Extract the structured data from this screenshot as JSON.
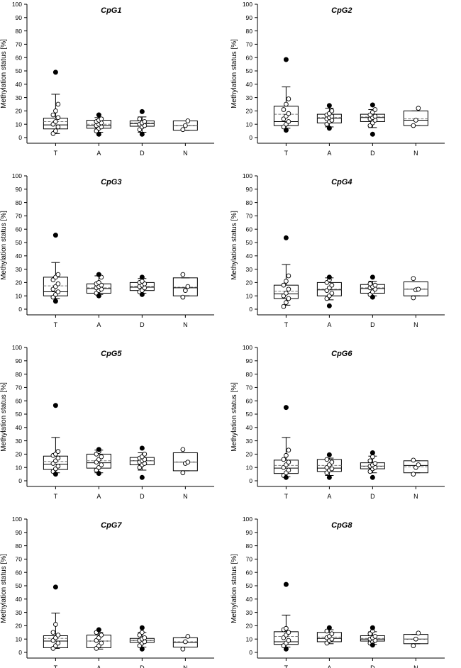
{
  "figure": {
    "ylabel": "Methylation status [%]",
    "categories": [
      "T",
      "A",
      "D",
      "N"
    ],
    "yticks": [
      0,
      10,
      20,
      30,
      40,
      50,
      60,
      70,
      80,
      90,
      100
    ],
    "ylim": [
      0,
      100
    ]
  },
  "chart_data": [
    {
      "type": "box",
      "title": "CpG1",
      "xlabel": "",
      "ylabel": "Methylation status [%]",
      "ylim": [
        0,
        100
      ],
      "categories": [
        "T",
        "A",
        "D",
        "N"
      ],
      "boxes": [
        {
          "category": "T",
          "q1": 6.5,
          "median": 9.5,
          "q3": 14.5,
          "mean": 12,
          "wlo": 3,
          "whi": 32.5,
          "outliers": [
            49
          ],
          "points": [
            3,
            5,
            8,
            10,
            12,
            15,
            17,
            20,
            25
          ]
        },
        {
          "category": "A",
          "q1": 7,
          "median": 9,
          "q3": 13,
          "mean": 10,
          "wlo": 4,
          "whi": 15,
          "outliers": [
            2.5,
            17
          ],
          "points": [
            5,
            7,
            8,
            9,
            10,
            11,
            12,
            13,
            14
          ]
        },
        {
          "category": "D",
          "q1": 8.5,
          "median": 10.5,
          "q3": 12.5,
          "mean": 11,
          "wlo": 4,
          "whi": 15.5,
          "outliers": [
            2.5,
            19.5
          ],
          "points": [
            6,
            8,
            9,
            10,
            11,
            12,
            14
          ]
        },
        {
          "category": "N",
          "q1": 5.5,
          "median": 9,
          "q3": 12.5,
          "mean": 9,
          "wlo": 5.5,
          "whi": 12.5,
          "outliers": [],
          "points": [
            6,
            9,
            12.5
          ]
        }
      ]
    },
    {
      "type": "box",
      "title": "CpG2",
      "xlabel": "",
      "ylabel": "Methylation status [%]",
      "ylim": [
        0,
        100
      ],
      "categories": [
        "T",
        "A",
        "D",
        "N"
      ],
      "boxes": [
        {
          "category": "T",
          "q1": 9,
          "median": 12,
          "q3": 23.5,
          "mean": 17.5,
          "wlo": 7,
          "whi": 38,
          "outliers": [
            58.5,
            5.5
          ],
          "points": [
            8,
            10,
            12,
            14,
            16,
            18,
            21,
            25,
            29
          ]
        },
        {
          "category": "A",
          "q1": 11,
          "median": 14.5,
          "q3": 17.5,
          "mean": 15,
          "wlo": 8,
          "whi": 22,
          "outliers": [
            7,
            24
          ],
          "points": [
            10,
            12,
            13,
            14,
            15,
            16,
            17,
            18,
            20
          ]
        },
        {
          "category": "D",
          "q1": 12,
          "median": 15,
          "q3": 17.5,
          "mean": 15.5,
          "wlo": 7.5,
          "whi": 21,
          "outliers": [
            2.5,
            24.5
          ],
          "points": [
            9,
            11,
            13,
            14,
            15,
            16,
            17,
            19,
            21
          ]
        },
        {
          "category": "N",
          "q1": 9,
          "median": 13,
          "q3": 20,
          "mean": 14,
          "wlo": 9,
          "whi": 20,
          "outliers": [],
          "points": [
            9,
            13,
            22
          ]
        }
      ]
    },
    {
      "type": "box",
      "title": "CpG3",
      "xlabel": "",
      "ylabel": "Methylation status [%]",
      "ylim": [
        0,
        100
      ],
      "categories": [
        "T",
        "A",
        "D",
        "N"
      ],
      "boxes": [
        {
          "category": "T",
          "q1": 10,
          "median": 13,
          "q3": 24,
          "mean": 17.5,
          "wlo": 8,
          "whi": 35,
          "outliers": [
            55.5,
            6
          ],
          "points": [
            9,
            11,
            13,
            15,
            17,
            19,
            22,
            24,
            26
          ]
        },
        {
          "category": "A",
          "q1": 12,
          "median": 15.5,
          "q3": 19,
          "mean": 16,
          "wlo": 11,
          "whi": 25,
          "outliers": [
            10,
            26
          ],
          "points": [
            12,
            14,
            15,
            16,
            17,
            18,
            19,
            20,
            24
          ]
        },
        {
          "category": "D",
          "q1": 14,
          "median": 16.5,
          "q3": 20,
          "mean": 17,
          "wlo": 12,
          "whi": 23,
          "outliers": [
            11,
            24
          ],
          "points": [
            13,
            14,
            16,
            17,
            18,
            19,
            20,
            21
          ]
        },
        {
          "category": "N",
          "q1": 10,
          "median": 16,
          "q3": 23.5,
          "mean": 16.5,
          "wlo": 10,
          "whi": 23.5,
          "outliers": [],
          "points": [
            9,
            14,
            17,
            26
          ]
        }
      ]
    },
    {
      "type": "box",
      "title": "CpG4",
      "xlabel": "",
      "ylabel": "Methylation status [%]",
      "ylim": [
        0,
        100
      ],
      "categories": [
        "T",
        "A",
        "D",
        "N"
      ],
      "boxes": [
        {
          "category": "T",
          "q1": 8,
          "median": 11.5,
          "q3": 18,
          "mean": 13.5,
          "wlo": 3,
          "whi": 33.5,
          "outliers": [
            53.5
          ],
          "points": [
            2,
            5,
            8,
            10,
            12,
            15,
            18,
            21,
            25
          ]
        },
        {
          "category": "A",
          "q1": 10,
          "median": 14.5,
          "q3": 20,
          "mean": 15,
          "wlo": 7,
          "whi": 23.5,
          "outliers": [
            2.5,
            24
          ],
          "points": [
            8,
            10,
            12,
            14,
            16,
            18,
            20,
            22
          ]
        },
        {
          "category": "D",
          "q1": 12,
          "median": 15.5,
          "q3": 18.5,
          "mean": 16,
          "wlo": 10,
          "whi": 21,
          "outliers": [
            9,
            24
          ],
          "points": [
            11,
            13,
            15,
            16,
            17,
            18,
            19
          ]
        },
        {
          "category": "N",
          "q1": 10,
          "median": 15,
          "q3": 20.5,
          "mean": 15,
          "wlo": 10,
          "whi": 20.5,
          "outliers": [],
          "points": [
            8.5,
            14.5,
            15,
            23
          ]
        }
      ]
    },
    {
      "type": "box",
      "title": "CpG5",
      "xlabel": "",
      "ylabel": "Methylation status [%]",
      "ylim": [
        0,
        100
      ],
      "categories": [
        "T",
        "A",
        "D",
        "N"
      ],
      "boxes": [
        {
          "category": "T",
          "q1": 8.5,
          "median": 12.5,
          "q3": 18.5,
          "mean": 14.5,
          "wlo": 6,
          "whi": 32.5,
          "outliers": [
            56.5,
            5
          ],
          "points": [
            7,
            9,
            11,
            13,
            15,
            17,
            19,
            20,
            22
          ]
        },
        {
          "category": "A",
          "q1": 9.5,
          "median": 13.5,
          "q3": 20,
          "mean": 15,
          "wlo": 6,
          "whi": 23,
          "outliers": [
            5.5,
            23.5
          ],
          "points": [
            8,
            10,
            12,
            14,
            16,
            18,
            20,
            22
          ]
        },
        {
          "category": "D",
          "q1": 12,
          "median": 15,
          "q3": 17.5,
          "mean": 15,
          "wlo": 8,
          "whi": 21,
          "outliers": [
            2.5,
            24.5
          ],
          "points": [
            10,
            12,
            13,
            14,
            15,
            16,
            17,
            18,
            20
          ]
        },
        {
          "category": "N",
          "q1": 7.5,
          "median": 14,
          "q3": 21,
          "mean": 14,
          "wlo": 7.5,
          "whi": 21,
          "outliers": [],
          "points": [
            6,
            13,
            14,
            23.5
          ]
        }
      ]
    },
    {
      "type": "box",
      "title": "CpG6",
      "xlabel": "",
      "ylabel": "Methylation status [%]",
      "ylim": [
        0,
        100
      ],
      "categories": [
        "T",
        "A",
        "D",
        "N"
      ],
      "boxes": [
        {
          "category": "T",
          "q1": 5.5,
          "median": 9.5,
          "q3": 15.5,
          "mean": 11.5,
          "wlo": 3,
          "whi": 32.5,
          "outliers": [
            55,
            2.5
          ],
          "points": [
            4,
            6,
            8,
            10,
            12,
            14,
            16,
            19,
            23
          ]
        },
        {
          "category": "A",
          "q1": 7,
          "median": 9.5,
          "q3": 16,
          "mean": 11.5,
          "wlo": 4,
          "whi": 17,
          "outliers": [
            2.5,
            19.5
          ],
          "points": [
            6,
            8,
            9,
            10,
            12,
            14,
            16
          ]
        },
        {
          "category": "D",
          "q1": 9,
          "median": 11,
          "q3": 13.5,
          "mean": 11,
          "wlo": 6,
          "whi": 18.5,
          "outliers": [
            2.5,
            21
          ],
          "points": [
            7,
            9,
            10,
            11,
            12,
            13,
            15,
            18
          ]
        },
        {
          "category": "N",
          "q1": 6,
          "median": 11.5,
          "q3": 15,
          "mean": 10.5,
          "wlo": 6,
          "whi": 15,
          "outliers": [],
          "points": [
            5,
            10,
            12,
            15.5
          ]
        }
      ]
    },
    {
      "type": "box",
      "title": "CpG7",
      "xlabel": "",
      "ylabel": "Methylation status [%]",
      "ylim": [
        0,
        100
      ],
      "categories": [
        "T",
        "A",
        "D",
        "N"
      ],
      "boxes": [
        {
          "category": "T",
          "q1": 3.5,
          "median": 8.5,
          "q3": 12.5,
          "mean": 10.5,
          "wlo": 3,
          "whi": 29.5,
          "outliers": [
            49
          ],
          "points": [
            3,
            5,
            7,
            9,
            11,
            13,
            15,
            21
          ]
        },
        {
          "category": "A",
          "q1": 3.5,
          "median": 8.5,
          "q3": 13,
          "mean": 8.5,
          "wlo": 2.5,
          "whi": 15,
          "outliers": [
            17
          ],
          "points": [
            3,
            5,
            7,
            9,
            11,
            13,
            15
          ]
        },
        {
          "category": "D",
          "q1": 7.5,
          "median": 9,
          "q3": 10.5,
          "mean": 9,
          "wlo": 4,
          "whi": 15,
          "outliers": [
            2.5,
            18.5
          ],
          "points": [
            5,
            7,
            8,
            9,
            10,
            11,
            13,
            15
          ]
        },
        {
          "category": "N",
          "q1": 4,
          "median": 7.5,
          "q3": 11,
          "mean": 8,
          "wlo": 4,
          "whi": 11,
          "outliers": [],
          "points": [
            2.5,
            8,
            12
          ]
        }
      ]
    },
    {
      "type": "box",
      "title": "CpG8",
      "xlabel": "",
      "ylabel": "Methylation status [%]",
      "ylim": [
        0,
        100
      ],
      "categories": [
        "T",
        "A",
        "D",
        "N"
      ],
      "boxes": [
        {
          "category": "T",
          "q1": 6,
          "median": 8,
          "q3": 15.5,
          "mean": 12,
          "wlo": 4,
          "whi": 28,
          "outliers": [
            51,
            2.5
          ],
          "points": [
            5,
            7,
            9,
            11,
            13,
            15,
            17,
            18
          ]
        },
        {
          "category": "A",
          "q1": 8,
          "median": 10.5,
          "q3": 15,
          "mean": 11.5,
          "wlo": 6.5,
          "whi": 17,
          "outliers": [
            18.5
          ],
          "points": [
            7,
            9,
            10,
            11,
            12,
            14,
            16
          ]
        },
        {
          "category": "D",
          "q1": 8.5,
          "median": 10,
          "q3": 12.5,
          "mean": 10.5,
          "wlo": 6,
          "whi": 15.5,
          "outliers": [
            5.5,
            18.5
          ],
          "points": [
            7,
            8,
            9,
            10,
            11,
            12,
            14,
            16
          ]
        },
        {
          "category": "N",
          "q1": 6.5,
          "median": 10,
          "q3": 13.5,
          "mean": 10,
          "wlo": 6.5,
          "whi": 13.5,
          "outliers": [],
          "points": [
            5,
            10,
            14.5
          ]
        }
      ]
    }
  ]
}
